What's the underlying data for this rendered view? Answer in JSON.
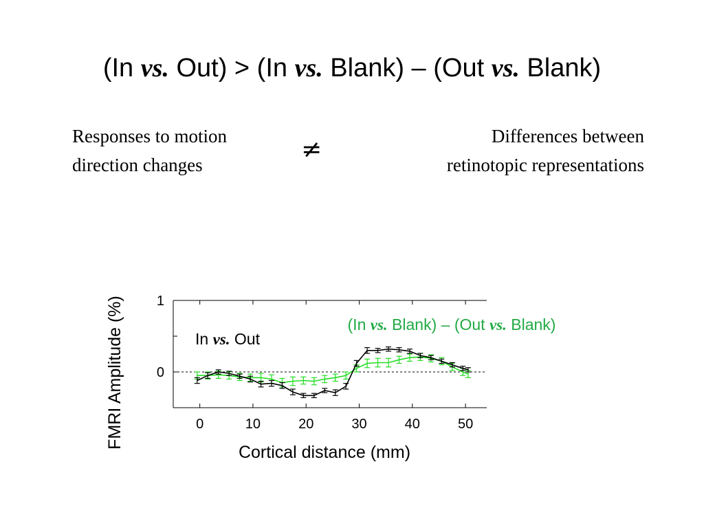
{
  "title": {
    "p1": "(In ",
    "vs1": "vs.",
    "p2": " Out) > (In ",
    "vs2": "vs.",
    "p3": " Blank) – (Out ",
    "vs3": "vs.",
    "p4": " Blank)"
  },
  "notes": {
    "left_line1": "Responses to motion",
    "left_line2": "direction changes",
    "symbol": "≠",
    "right_line1": "Differences between",
    "right_line2": "retinotopic representations"
  },
  "chart_data": {
    "type": "line",
    "title": "",
    "xlabel": "Cortical distance (mm)",
    "ylabel": "FMRI Amplitude (%)",
    "xlim": [
      -5,
      54
    ],
    "ylim": [
      -0.5,
      1
    ],
    "xticks": [
      0,
      10,
      20,
      30,
      40,
      50
    ],
    "yticks": [
      0,
      1
    ],
    "reference_line": 0,
    "grid": false,
    "annotations": [
      {
        "text_parts": [
          "In ",
          "vs.",
          " Out"
        ],
        "color": "#000000"
      },
      {
        "text_parts": [
          "(In ",
          "vs.",
          " Blank) – (Out ",
          "vs.",
          " Blank)"
        ],
        "color": "#22aa44"
      }
    ],
    "series": [
      {
        "color": "#000000",
        "x": [
          -0.5,
          1.5,
          3.5,
          5.5,
          7.5,
          9.5,
          11.5,
          13.5,
          15.5,
          17.5,
          19.5,
          21.5,
          23.5,
          25.5,
          27.5,
          29.5,
          31.5,
          33.5,
          35.5,
          37.5,
          39.5,
          41.5,
          43.5,
          45.5,
          47.5,
          49.5,
          50.5
        ],
        "y": [
          -0.12,
          -0.05,
          0.0,
          -0.02,
          -0.06,
          -0.1,
          -0.17,
          -0.16,
          -0.19,
          -0.28,
          -0.33,
          -0.33,
          -0.26,
          -0.29,
          -0.2,
          0.12,
          0.3,
          0.3,
          0.32,
          0.31,
          0.29,
          0.23,
          0.2,
          0.15,
          0.1,
          0.05,
          0.03
        ],
        "error": [
          0.04,
          0.04,
          0.03,
          0.03,
          0.03,
          0.04,
          0.04,
          0.04,
          0.04,
          0.04,
          0.03,
          0.03,
          0.03,
          0.04,
          0.04,
          0.04,
          0.04,
          0.03,
          0.03,
          0.03,
          0.03,
          0.03,
          0.03,
          0.03,
          0.03,
          0.03,
          0.03
        ]
      },
      {
        "color": "#22dd22",
        "x": [
          -0.5,
          1.5,
          3.5,
          5.5,
          7.5,
          9.5,
          11.5,
          13.5,
          15.5,
          17.5,
          19.5,
          21.5,
          23.5,
          25.5,
          27.5,
          29.5,
          31.5,
          33.5,
          35.5,
          37.5,
          39.5,
          41.5,
          43.5,
          45.5,
          47.5,
          49.5,
          50.5
        ],
        "y": [
          -0.05,
          -0.05,
          -0.04,
          -0.05,
          -0.07,
          -0.08,
          -0.08,
          -0.1,
          -0.15,
          -0.13,
          -0.12,
          -0.13,
          -0.1,
          -0.08,
          -0.05,
          0.05,
          0.12,
          0.13,
          0.13,
          0.17,
          0.2,
          0.21,
          0.19,
          0.15,
          0.07,
          0.0,
          -0.03
        ],
        "error": [
          0.05,
          0.05,
          0.05,
          0.05,
          0.05,
          0.05,
          0.06,
          0.06,
          0.06,
          0.06,
          0.05,
          0.05,
          0.05,
          0.05,
          0.05,
          0.05,
          0.06,
          0.06,
          0.06,
          0.05,
          0.05,
          0.05,
          0.05,
          0.05,
          0.05,
          0.05,
          0.05
        ]
      }
    ]
  }
}
